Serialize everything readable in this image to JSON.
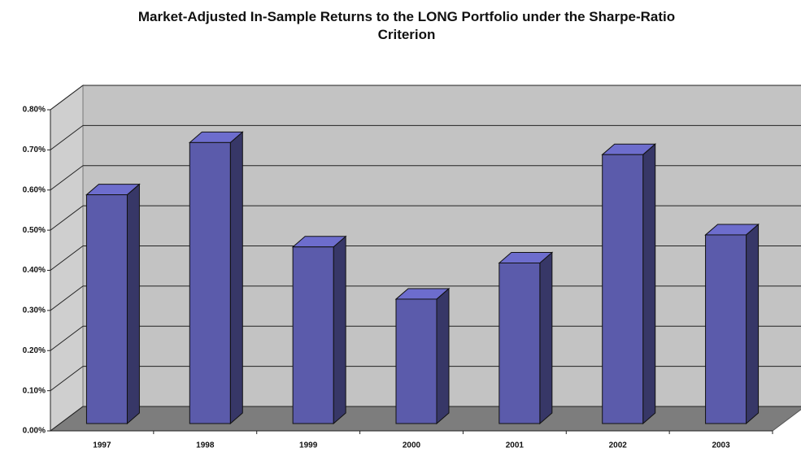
{
  "chart_data": {
    "type": "bar3d",
    "title": "Market-Adjusted In-Sample Returns to the LONG Portfolio under the Sharpe-Ratio Criterion",
    "categories": [
      "1997",
      "1998",
      "1999",
      "2000",
      "2001",
      "2002",
      "2003"
    ],
    "values": [
      0.57,
      0.7,
      0.44,
      0.31,
      0.4,
      0.67,
      0.47
    ],
    "color": "#5b5bab",
    "ylim": [
      0,
      0.8
    ],
    "yticks": [
      {
        "value": 0,
        "label": "0.00%"
      },
      {
        "value": 0.1,
        "label": "0.10%"
      },
      {
        "value": 0.2,
        "label": "0.20%"
      },
      {
        "value": 0.3,
        "label": "0.30%"
      },
      {
        "value": 0.4,
        "label": "0.40%"
      },
      {
        "value": 0.5,
        "label": "0.50%"
      },
      {
        "value": 0.6,
        "label": "0.60%"
      },
      {
        "value": 0.7,
        "label": "0.70%"
      },
      {
        "value": 0.8,
        "label": "0.80%"
      }
    ],
    "grid": true
  }
}
